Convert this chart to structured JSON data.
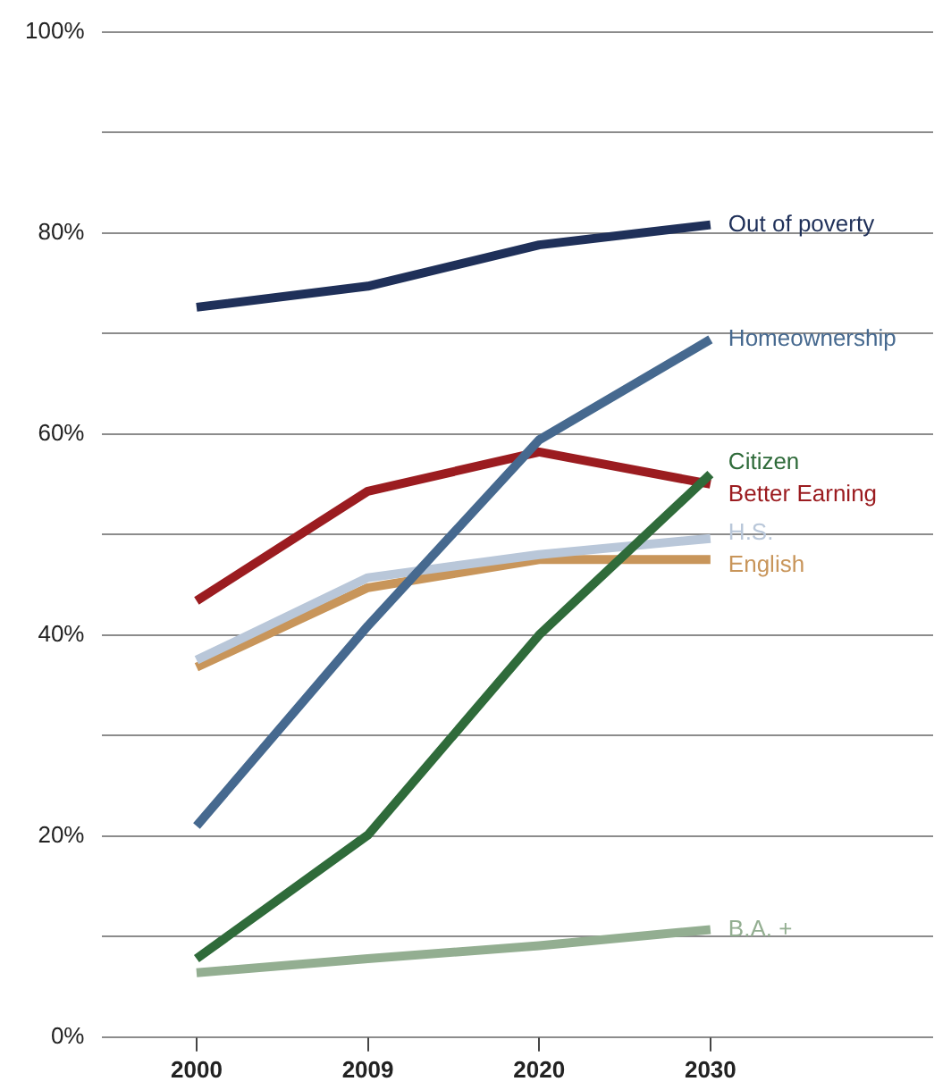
{
  "chart_data": {
    "type": "line",
    "categories": [
      "2000",
      "2009",
      "2020",
      "2030"
    ],
    "series": [
      {
        "name": "Out of poverty",
        "color": "#1f3059",
        "values": [
          72.6,
          74.7,
          78.8,
          80.8
        ]
      },
      {
        "name": "Homeownership",
        "color": "#46698f",
        "values": [
          21.0,
          40.9,
          59.4,
          69.4
        ]
      },
      {
        "name": "Citizen",
        "color": "#2f6b3a",
        "values": [
          7.8,
          20.1,
          40.0,
          56.0
        ]
      },
      {
        "name": "Better Earning",
        "color": "#9b1c20",
        "values": [
          43.4,
          54.3,
          58.2,
          55.0
        ]
      },
      {
        "name": "H.S.",
        "color": "#b9c7d9",
        "values": [
          37.5,
          45.7,
          48.0,
          49.6
        ]
      },
      {
        "name": "English",
        "color": "#c8955a",
        "values": [
          36.8,
          44.7,
          47.5,
          47.5
        ]
      },
      {
        "name": "B.A. +",
        "color": "#93ae91",
        "values": [
          6.4,
          7.8,
          9.1,
          10.7
        ]
      }
    ],
    "ylim": [
      0,
      100
    ],
    "yticks": [
      {
        "value": 0,
        "label": "0%"
      },
      {
        "value": 10,
        "label": null
      },
      {
        "value": 20,
        "label": "20%"
      },
      {
        "value": 30,
        "label": null
      },
      {
        "value": 40,
        "label": "40%"
      },
      {
        "value": 50,
        "label": null
      },
      {
        "value": 60,
        "label": "60%"
      },
      {
        "value": 70,
        "label": null
      },
      {
        "value": 80,
        "label": "80%"
      },
      {
        "value": 90,
        "label": null
      },
      {
        "value": 100,
        "label": "100%"
      }
    ],
    "grid": "y",
    "legend": false,
    "marker": "none",
    "line_style": "solid"
  }
}
